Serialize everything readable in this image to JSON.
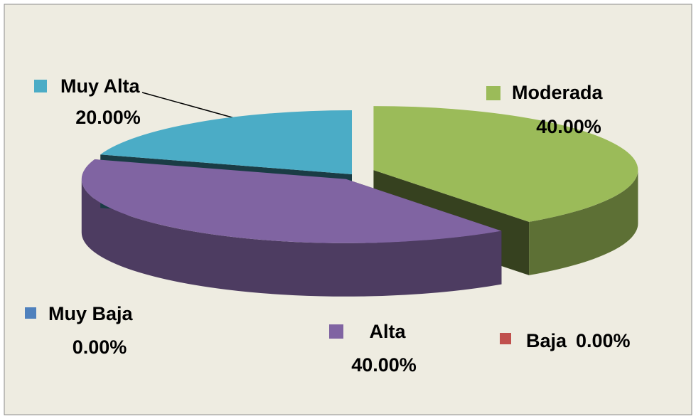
{
  "chart_data": {
    "type": "pie",
    "categories": [
      "Muy Baja",
      "Baja",
      "Moderada",
      "Alta",
      "Muy Alta"
    ],
    "values": [
      0,
      0,
      40,
      40,
      20
    ],
    "value_labels": [
      "0.00%",
      "0.00%",
      "40.00%",
      "40.00%",
      "20.00%"
    ],
    "colors": [
      "#4f81bd",
      "#c0504d",
      "#9bbb59",
      "#8064a2",
      "#4bacc6"
    ],
    "style": "3d"
  }
}
